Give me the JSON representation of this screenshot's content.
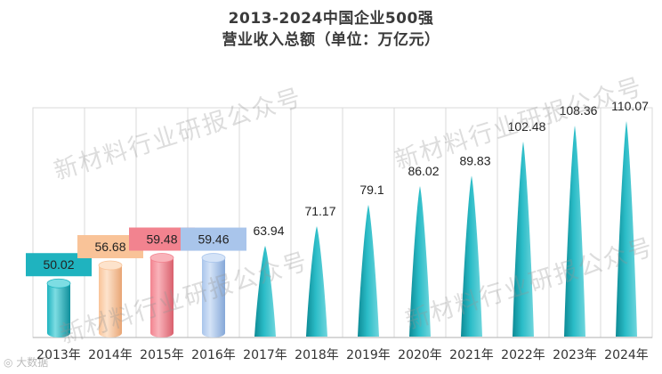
{
  "title": {
    "line1": "2013-2024中国企业500强",
    "line2": "营业收入总额（单位：万亿元）"
  },
  "watermark_text": "新材料行业研报公众号",
  "corner_logo_text": "大数据",
  "colors": {
    "teal": "#1fb3bf",
    "peach": "#f9c398",
    "pink": "#f2838f",
    "blue": "#a9c5eb",
    "grid": "#d9d9d9",
    "axis": "#bfbfbf"
  },
  "chart_data": {
    "type": "bar",
    "title": "2013-2024中国企业500强 营业收入总额（单位：万亿元）",
    "categories": [
      "2013年",
      "2014年",
      "2015年",
      "2016年",
      "2017年",
      "2018年",
      "2019年",
      "2020年",
      "2021年",
      "2022年",
      "2023年",
      "2024年"
    ],
    "values": [
      50.02,
      56.68,
      59.48,
      59.46,
      63.94,
      71.17,
      79.1,
      86.02,
      89.83,
      102.48,
      108.36,
      110.07
    ],
    "value_labels": [
      "50.02",
      "56.68",
      "59.48",
      "59.46",
      "63.94",
      "71.17",
      "79.1",
      "86.02",
      "89.83",
      "102.48",
      "108.36",
      "110.07"
    ],
    "ylim": [
      30,
      115
    ],
    "grid": true,
    "y_axis_shown": false,
    "bar_shapes": [
      "cylinder",
      "cylinder",
      "cylinder",
      "cylinder",
      "cone",
      "cone",
      "cone",
      "cone",
      "cone",
      "cone",
      "cone",
      "cone"
    ],
    "bar_colors": [
      "teal",
      "peach",
      "pink",
      "blue",
      "teal",
      "teal",
      "teal",
      "teal",
      "teal",
      "teal",
      "teal",
      "teal"
    ],
    "boxed_labels": [
      true,
      true,
      true,
      true,
      false,
      false,
      false,
      false,
      false,
      false,
      false,
      false
    ]
  }
}
